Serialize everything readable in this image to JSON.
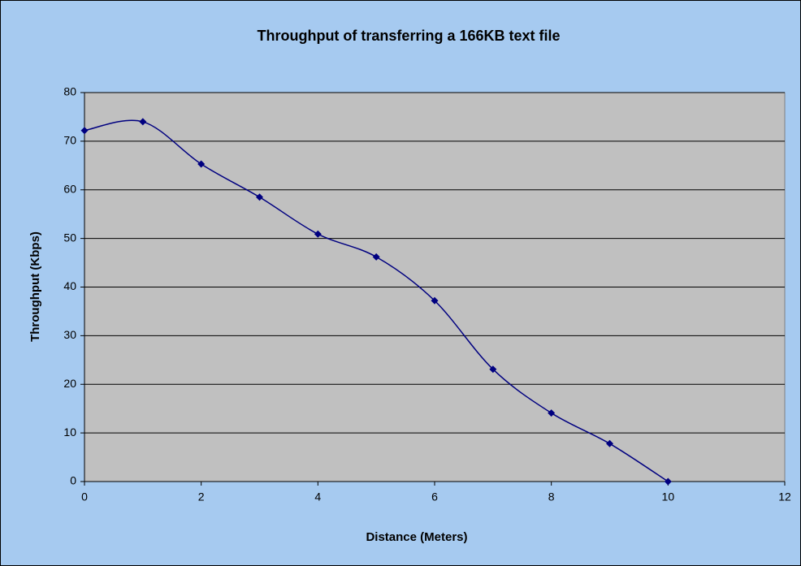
{
  "chart_data": {
    "type": "line",
    "title": "Throughput of transferring a 166KB text file",
    "x_label": "Distance (Meters)",
    "y_label": "Throughput (Kbps)",
    "x": [
      0,
      1,
      2,
      3,
      4,
      5,
      6,
      7,
      8,
      9,
      10
    ],
    "series": [
      {
        "name": "Throughput",
        "color": "#000080",
        "values": [
          72.2,
          74,
          65.3,
          58.5,
          50.9,
          46.2,
          37.2,
          23.1,
          14.1,
          7.8,
          0
        ]
      }
    ],
    "smooth": true,
    "xlim": [
      0,
      12
    ],
    "xticks": [
      0,
      2,
      4,
      6,
      8,
      10,
      12
    ],
    "ylim": [
      0,
      80
    ],
    "yticks": [
      0,
      10,
      20,
      30,
      40,
      50,
      60,
      70,
      80
    ],
    "grid": true
  }
}
